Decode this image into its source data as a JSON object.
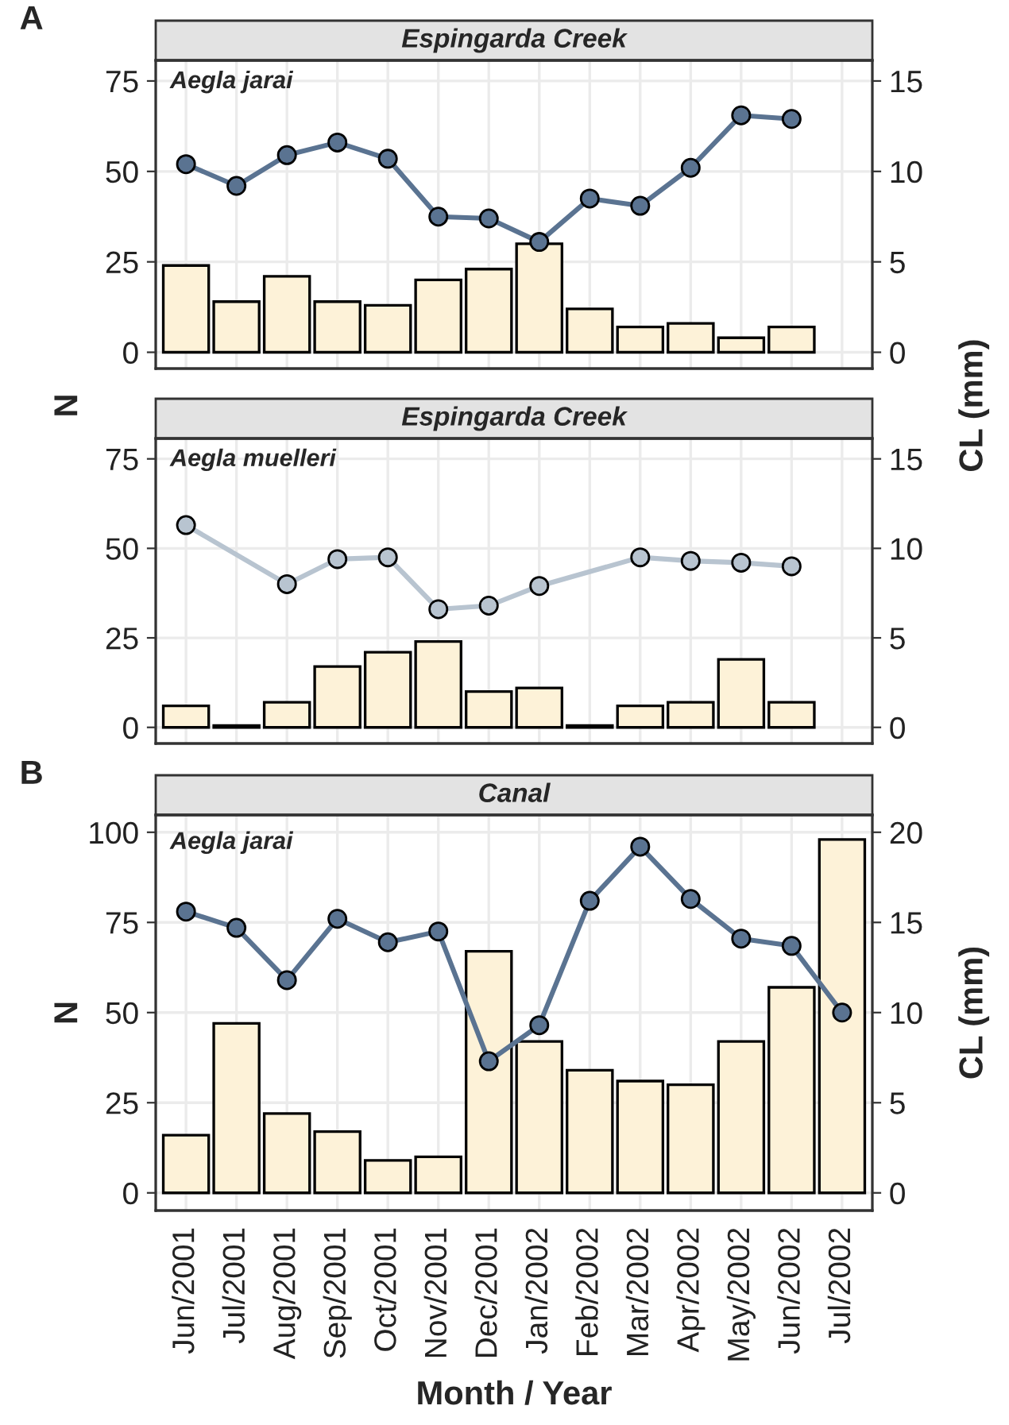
{
  "chart_data": [
    {
      "type": "bar",
      "title": "Espingarda Creek",
      "annotations": [
        "A",
        "Aegla jarai"
      ],
      "ylabel": "N",
      "y2label": "CL (mm)",
      "categories": [
        null,
        null,
        null,
        null,
        null,
        null,
        null,
        null,
        null,
        null,
        null,
        null,
        null,
        null
      ],
      "series": [
        {
          "color": "#fdf2d8",
          "values": [
            24,
            14,
            21,
            14,
            13,
            20,
            23,
            30,
            12,
            7,
            8,
            4,
            7,
            null
          ]
        },
        {
          "type": "line",
          "axis": "y2",
          "color": "#5a7391",
          "values": [
            10.4,
            9.2,
            10.9,
            11.6,
            10.7,
            7.5,
            7.4,
            6.1,
            8.5,
            8.1,
            10.2,
            13.1,
            12.9,
            null
          ]
        }
      ],
      "ylim": [
        -4.5,
        80.7
      ],
      "yticks": [
        0,
        25,
        50,
        75
      ],
      "y2lim": [
        -0.9,
        16.14
      ],
      "y2ticks": [
        0,
        5,
        10,
        15
      ],
      "grid": true,
      "marker": "circle",
      "line_style": "solid",
      "tick_labels": "y"
    },
    {
      "type": "bar",
      "title": "Espingarda Creek",
      "annotations": [
        "Aegla muelleri"
      ],
      "categories": [
        null,
        null,
        null,
        null,
        null,
        null,
        null,
        null,
        null,
        null,
        null,
        null,
        null,
        null
      ],
      "series": [
        {
          "color": "#fdf2d8",
          "values": [
            6,
            0.5,
            7,
            17,
            21,
            24,
            10,
            11,
            0.5,
            6,
            7,
            19,
            7,
            null
          ]
        },
        {
          "type": "line",
          "axis": "y2",
          "color": "#b8c4d0",
          "values": [
            11.3,
            null,
            8.0,
            9.4,
            9.5,
            6.6,
            6.8,
            7.9,
            null,
            9.5,
            9.3,
            9.2,
            9.0,
            null
          ]
        }
      ],
      "ylim": [
        -4.5,
        80.7
      ],
      "yticks": [
        0,
        25,
        50,
        75
      ],
      "y2lim": [
        -0.9,
        16.14
      ],
      "y2ticks": [
        0,
        5,
        10,
        15
      ],
      "grid": true,
      "marker": "circle",
      "line_style": "solid",
      "tick_labels": "y"
    },
    {
      "type": "bar",
      "title": "Canal",
      "annotations": [
        "B",
        "Aegla jarai"
      ],
      "ylabel": "N",
      "y2label": "CL (mm)",
      "xlabel": "Month / Year",
      "categories": [
        "Jun/2001",
        "Jul/2001",
        "Aug/2001",
        "Sep/2001",
        "Oct/2001",
        "Nov/2001",
        "Dec/2001",
        "Jan/2002",
        "Feb/2002",
        "Mar/2002",
        "Apr/2002",
        "May/2002",
        "Jun/2002",
        "Jul/2002"
      ],
      "series": [
        {
          "color": "#fdf2d8",
          "values": [
            16,
            47,
            22,
            17,
            9,
            10,
            67,
            42,
            34,
            31,
            30,
            42,
            57,
            98
          ]
        },
        {
          "type": "line",
          "axis": "y2",
          "color": "#5a7391",
          "values": [
            15.6,
            14.7,
            11.8,
            15.2,
            13.9,
            14.5,
            7.3,
            9.3,
            16.2,
            19.2,
            16.3,
            14.1,
            13.7,
            10.0
          ]
        }
      ],
      "ylim": [
        -4.9,
        104.8
      ],
      "yticks": [
        0,
        25,
        50,
        75,
        100
      ],
      "y2lim": [
        -0.98,
        20.96
      ],
      "y2ticks": [
        0,
        5,
        10,
        15,
        20
      ],
      "grid": true,
      "marker": "circle",
      "line_style": "solid"
    }
  ]
}
